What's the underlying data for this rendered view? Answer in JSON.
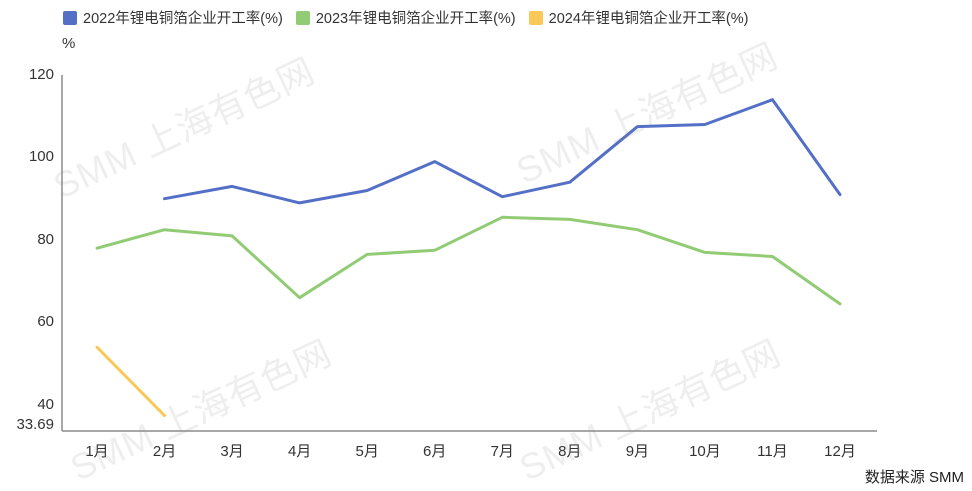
{
  "chart_data": {
    "type": "line",
    "unit_label": "%",
    "categories": [
      "1月",
      "2月",
      "3月",
      "4月",
      "5月",
      "6月",
      "7月",
      "8月",
      "9月",
      "10月",
      "11月",
      "12月"
    ],
    "y_ticks": [
      120,
      100,
      80,
      60,
      40,
      33.69
    ],
    "ylim": [
      33.69,
      120
    ],
    "grid": false,
    "legend_position": "top",
    "series": [
      {
        "name": "2022年锂电铜箔企业开工率(%)",
        "color": "#5470c6",
        "values": [
          null,
          90,
          93,
          89,
          92,
          99,
          90.5,
          94,
          107.5,
          108,
          114,
          91
        ]
      },
      {
        "name": "2023年锂电铜箔企业开工率(%)",
        "color": "#91cc75",
        "values": [
          78,
          82.5,
          81,
          66,
          76.5,
          77.5,
          85.5,
          85,
          82.5,
          77,
          76,
          64.5
        ]
      },
      {
        "name": "2024年锂电铜箔企业开工率(%)",
        "color": "#fac858",
        "values": [
          54,
          37.43,
          null,
          null,
          null,
          null,
          null,
          null,
          null,
          null,
          null,
          null
        ]
      }
    ]
  },
  "watermark": {
    "text": "SMM 上海有色网"
  },
  "source": {
    "text": "数据来源 SMM"
  }
}
